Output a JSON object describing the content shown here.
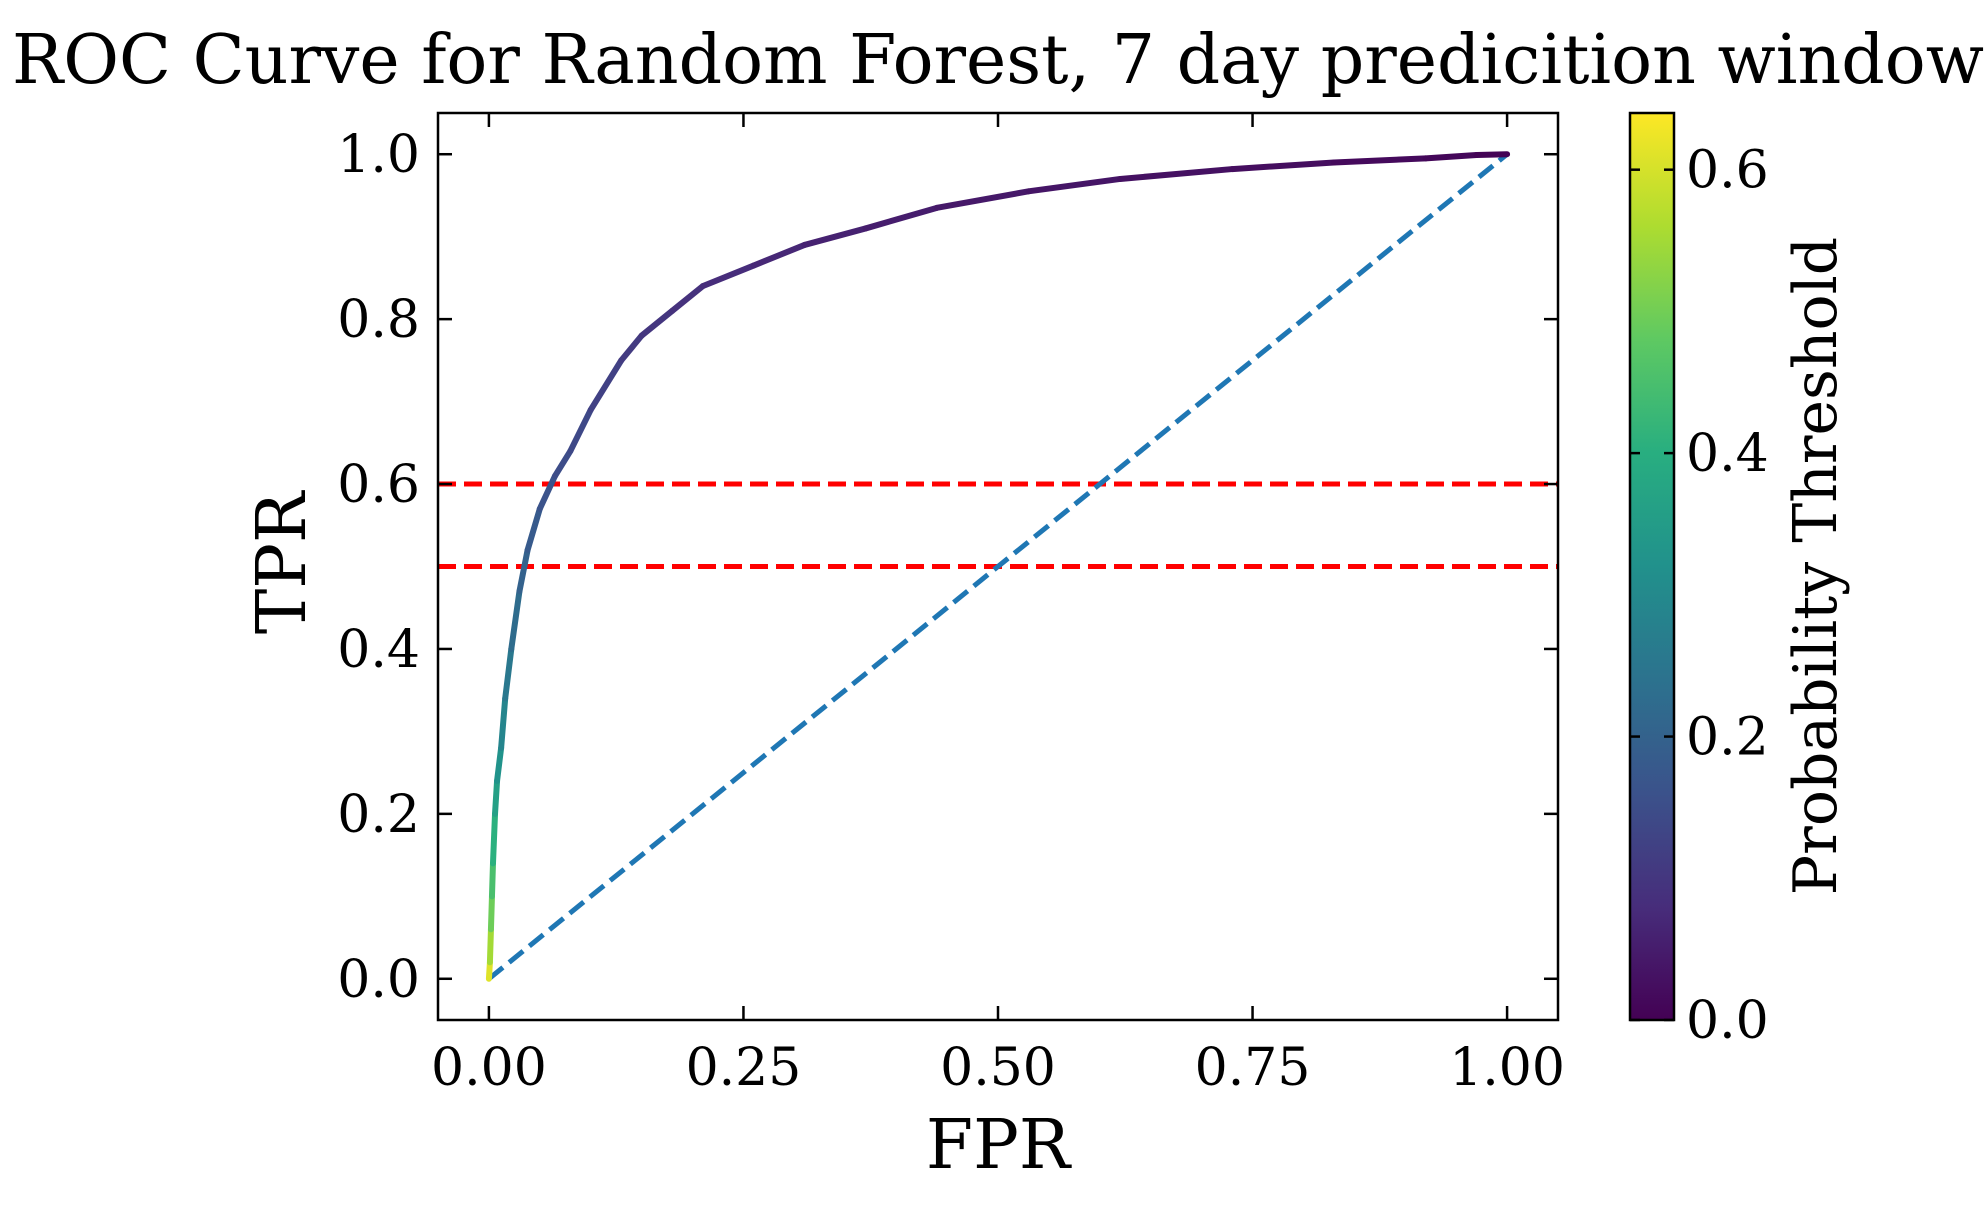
{
  "chart_data": {
    "type": "line",
    "title": "ROC Curve for Random Forest, 7 day predicition window",
    "xlabel": "FPR",
    "ylabel": "TPR",
    "xlim": [
      -0.05,
      1.05
    ],
    "ylim": [
      -0.05,
      1.05
    ],
    "xticks": [
      0.0,
      0.25,
      0.5,
      0.75,
      1.0
    ],
    "xtick_labels": [
      "0.00",
      "0.25",
      "0.50",
      "0.75",
      "1.00"
    ],
    "yticks": [
      0.0,
      0.2,
      0.4,
      0.6,
      0.8,
      1.0
    ],
    "ytick_labels": [
      "0.0",
      "0.2",
      "0.4",
      "0.6",
      "0.8",
      "1.0"
    ],
    "grid": false,
    "roc_curve": {
      "fpr": [
        0.0,
        0.001,
        0.002,
        0.003,
        0.004,
        0.006,
        0.008,
        0.012,
        0.016,
        0.022,
        0.03,
        0.038,
        0.05,
        0.065,
        0.08,
        0.1,
        0.13,
        0.15,
        0.18,
        0.21,
        0.26,
        0.31,
        0.37,
        0.44,
        0.53,
        0.62,
        0.73,
        0.83,
        0.92,
        0.97,
        1.0
      ],
      "tpr": [
        0.0,
        0.02,
        0.06,
        0.1,
        0.14,
        0.2,
        0.24,
        0.28,
        0.34,
        0.4,
        0.47,
        0.52,
        0.57,
        0.61,
        0.64,
        0.69,
        0.75,
        0.78,
        0.81,
        0.84,
        0.865,
        0.89,
        0.91,
        0.935,
        0.955,
        0.97,
        0.982,
        0.99,
        0.995,
        0.999,
        1.0
      ],
      "threshold": [
        0.64,
        0.58,
        0.52,
        0.47,
        0.43,
        0.38,
        0.34,
        0.31,
        0.27,
        0.24,
        0.21,
        0.19,
        0.17,
        0.155,
        0.145,
        0.13,
        0.115,
        0.105,
        0.095,
        0.085,
        0.075,
        0.065,
        0.055,
        0.047,
        0.04,
        0.033,
        0.026,
        0.02,
        0.014,
        0.008,
        0.0
      ]
    },
    "diagonal": {
      "x": [
        0.0,
        1.0
      ],
      "y": [
        0.0,
        1.0
      ],
      "color": "#1f77b4",
      "style": "dashed"
    },
    "hlines": [
      {
        "y": 0.6,
        "color": "#ff0000",
        "style": "dashed"
      },
      {
        "y": 0.5,
        "color": "#ff0000",
        "style": "dashed"
      }
    ],
    "colorbar": {
      "label": "Probability Threshold",
      "colormap": "viridis",
      "range": [
        0.0,
        0.64
      ],
      "ticks": [
        0.0,
        0.2,
        0.4,
        0.6
      ],
      "tick_labels": [
        "0.0",
        "0.2",
        "0.4",
        "0.6"
      ]
    }
  }
}
